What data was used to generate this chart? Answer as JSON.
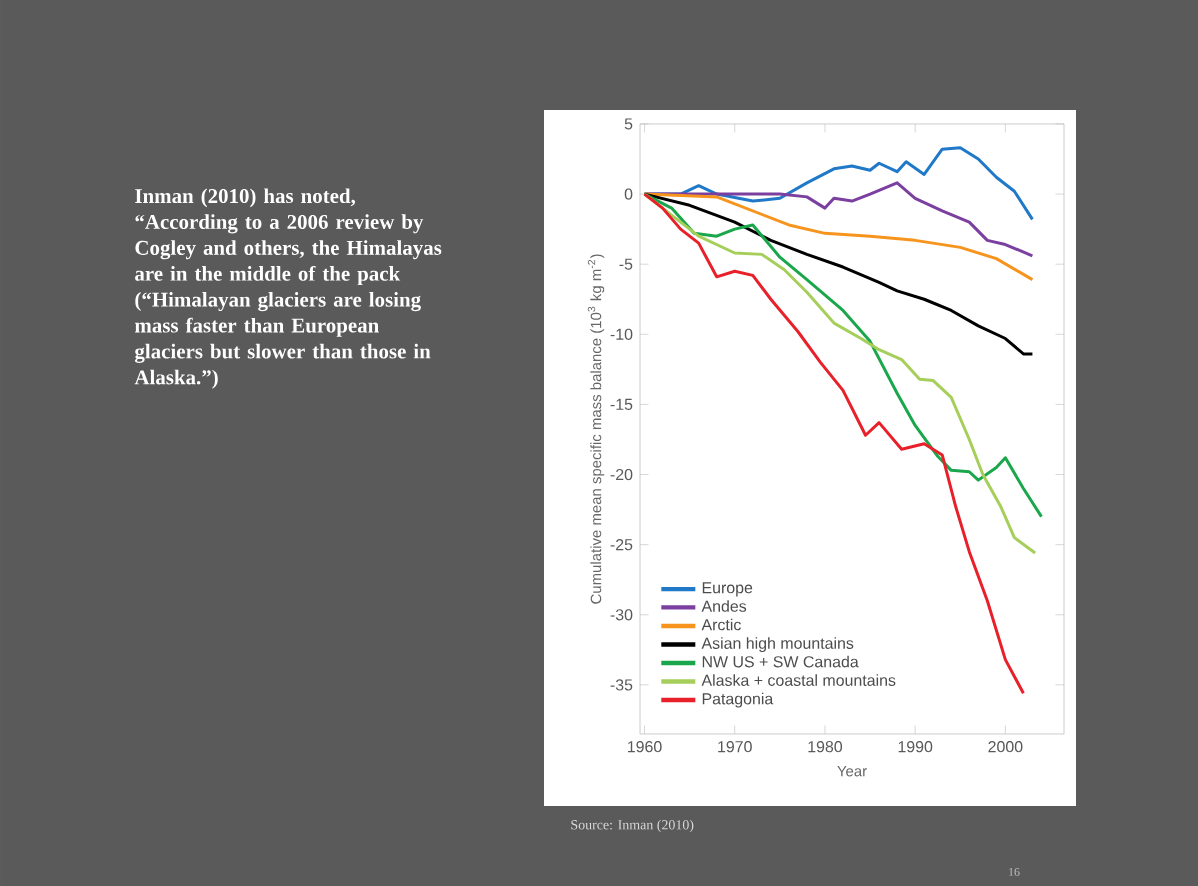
{
  "chart_data": {
    "type": "line",
    "xlabel": "Year",
    "ylabel": "Cumulative mean specific mass balance (10$^{3}$ kg m$^{-2}$)",
    "xlim": [
      1959.5,
      2006.5
    ],
    "ylim": [
      -38.5,
      5
    ],
    "xticks": [
      1960,
      1970,
      1980,
      1990,
      2000
    ],
    "yticks": [
      -35,
      -30,
      -25,
      -20,
      -15,
      -10,
      -5,
      0,
      5
    ],
    "legend": "bottom left",
    "series": [
      {
        "name": "Europe",
        "color": "#1f78c8",
        "x": [
          1960,
          1964,
          1966,
          1968,
          1972,
          1975,
          1978,
          1981,
          1983,
          1985,
          1986,
          1988,
          1989,
          1991,
          1993,
          1995,
          1997,
          1999,
          2001,
          2003
        ],
        "values": [
          0,
          0,
          0.6,
          0,
          -0.5,
          -0.3,
          0.8,
          1.8,
          2,
          1.7,
          2.2,
          1.6,
          2.3,
          1.4,
          3.2,
          3.3,
          2.5,
          1.2,
          0.2,
          -1.8
        ]
      },
      {
        "name": "Andes",
        "color": "#7b3fa0",
        "x": [
          1960,
          1975,
          1978,
          1980,
          1981,
          1983,
          1985,
          1988,
          1990,
          1993,
          1996,
          1998,
          2000,
          2003
        ],
        "values": [
          0,
          0,
          -0.2,
          -1.0,
          -0.3,
          -0.5,
          0,
          0.8,
          -0.3,
          -1.2,
          -2,
          -3.3,
          -3.6,
          -4.4
        ]
      },
      {
        "name": "Arctic",
        "color": "#f7941d",
        "x": [
          1960,
          1968,
          1972,
          1976,
          1980,
          1985,
          1990,
          1995,
          1999,
          2003
        ],
        "values": [
          0,
          -0.2,
          -1.2,
          -2.2,
          -2.8,
          -3,
          -3.3,
          -3.8,
          -4.6,
          -6.1
        ]
      },
      {
        "name": "Asian high mountains",
        "color": "#000000",
        "x": [
          1960,
          1965,
          1970,
          1974,
          1978,
          1982,
          1986,
          1988,
          1991,
          1994,
          1997,
          2000,
          2002,
          2003
        ],
        "values": [
          0,
          -0.8,
          -2.0,
          -3.3,
          -4.3,
          -5.2,
          -6.3,
          -6.9,
          -7.5,
          -8.3,
          -9.4,
          -10.3,
          -11.4,
          -11.4
        ]
      },
      {
        "name": "NW US + SW Canada",
        "color": "#1aa64a",
        "x": [
          1960,
          1963,
          1965.5,
          1968,
          1970,
          1972,
          1975,
          1978,
          1982,
          1985,
          1988,
          1990,
          1992.5,
          1994,
          1996,
          1997,
          1999,
          2000,
          2002,
          2004
        ],
        "values": [
          0,
          -1,
          -2.8,
          -3,
          -2.5,
          -2.2,
          -4.5,
          -6.1,
          -8.3,
          -10.5,
          -14.2,
          -16.5,
          -18.7,
          -19.7,
          -19.8,
          -20.4,
          -19.5,
          -18.8,
          -21,
          -23
        ]
      },
      {
        "name": "Alaska + coastal mountains",
        "color": "#a6ce5a",
        "x": [
          1960,
          1963,
          1966,
          1970,
          1973,
          1975.5,
          1978,
          1981,
          1984,
          1986,
          1988.5,
          1990.5,
          1992,
          1994,
          1996,
          1997.5,
          1999.5,
          2001,
          2003.3
        ],
        "values": [
          0,
          -1.5,
          -3,
          -4.2,
          -4.3,
          -5.4,
          -7,
          -9.2,
          -10.3,
          -11.1,
          -11.8,
          -13.2,
          -13.3,
          -14.5,
          -17.5,
          -20,
          -22.3,
          -24.5,
          -25.6
        ]
      },
      {
        "name": "Patagonia",
        "color": "#e8202a",
        "x": [
          1960,
          1962,
          1964,
          1966,
          1968,
          1970,
          1972,
          1974,
          1977,
          1979.5,
          1982,
          1984.5,
          1986,
          1988.5,
          1991,
          1993,
          1994.5,
          1996,
          1998,
          2000,
          2002
        ],
        "values": [
          0,
          -1,
          -2.5,
          -3.5,
          -5.9,
          -5.5,
          -5.8,
          -7.5,
          -9.8,
          -12,
          -14,
          -17.2,
          -16.3,
          -18.2,
          -17.8,
          -18.6,
          -22.3,
          -25.5,
          -29,
          -33.2,
          -35.6
        ]
      }
    ],
    "annotations": [
      "Inman (2010) has noted, “According to a 2006 review by Cogley and others, the Himalayas are in the middle of the pack (“Himalayan glaciers are losing mass faster than European glaciers but slower than those in Alaska.”)",
      "Source: Inman (2010)",
      "16"
    ]
  }
}
